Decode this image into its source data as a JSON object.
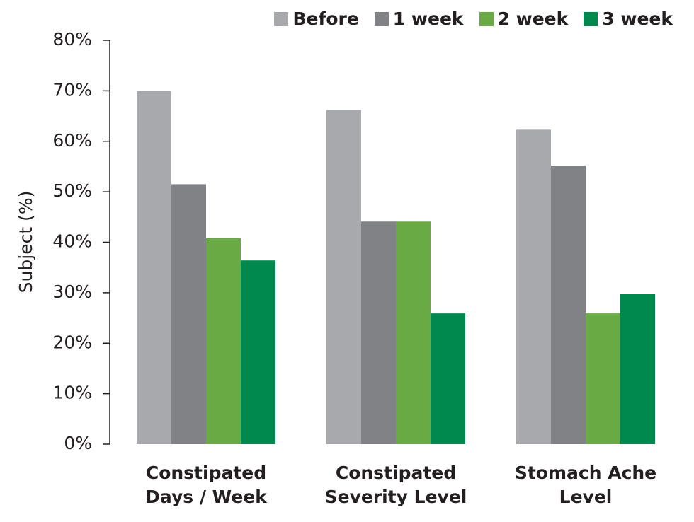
{
  "chart_data": {
    "type": "bar",
    "y_label": "Subject (%)",
    "categories": [
      "Constipated Days / Week",
      "Constipated Severity Level",
      "Stomach Ache Level"
    ],
    "series": [
      {
        "name": "Before",
        "color": "#a7a9ac",
        "values": [
          70,
          66.2,
          62.3
        ]
      },
      {
        "name": "1 week",
        "color": "#808285",
        "values": [
          51.5,
          44.1,
          55.2
        ]
      },
      {
        "name": "2 week",
        "color": "#6aaa45",
        "values": [
          40.8,
          44.1,
          25.9
        ]
      },
      {
        "name": "3 week",
        "color": "#00894f",
        "values": [
          36.4,
          25.9,
          29.7
        ]
      }
    ],
    "ylim": [
      0,
      80
    ],
    "yticks": [
      {
        "value": 0,
        "label": "0%"
      },
      {
        "value": 10,
        "label": "10%"
      },
      {
        "value": 20,
        "label": "20%"
      },
      {
        "value": 30,
        "label": "30%"
      },
      {
        "value": 40,
        "label": "40%"
      },
      {
        "value": 50,
        "label": "50%"
      },
      {
        "value": 60,
        "label": "60%"
      },
      {
        "value": 70,
        "label": "70%"
      },
      {
        "value": 80,
        "label": "80%"
      }
    ],
    "grid": false,
    "legend": "top-right"
  }
}
